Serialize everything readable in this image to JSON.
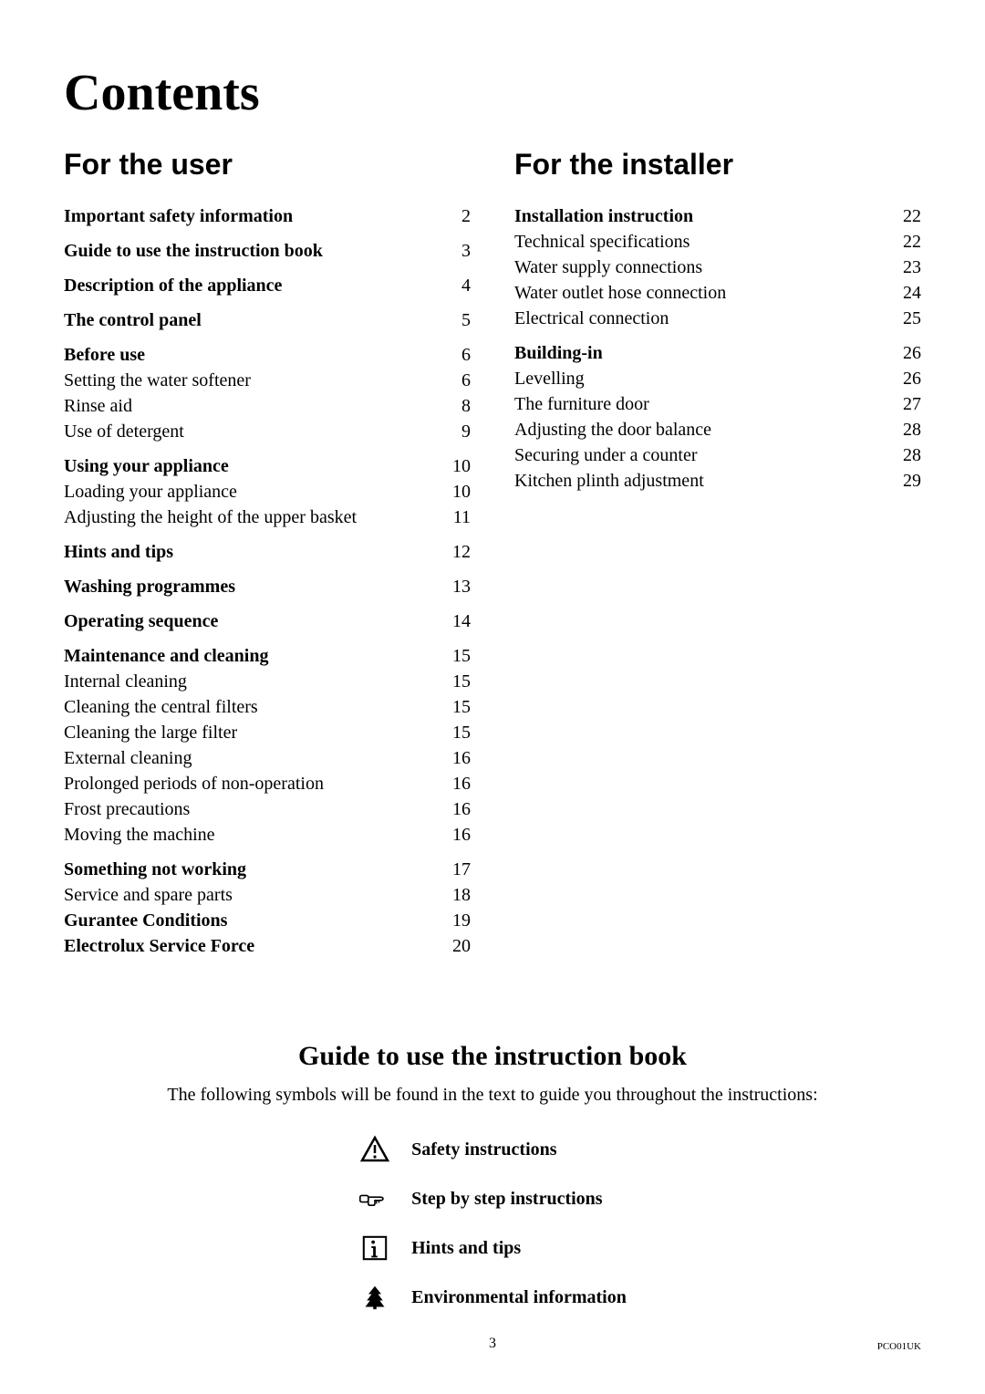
{
  "title": "Contents",
  "colors": {
    "text": "#000000",
    "background": "#ffffff"
  },
  "fonts": {
    "title_family": "Georgia",
    "heading_family": "Arial",
    "body_family": "Times New Roman",
    "title_size_pt": 42,
    "heading_size_pt": 24,
    "body_size_pt": 15
  },
  "left": {
    "heading": "For the user",
    "sections": [
      {
        "items": [
          {
            "label": "Important safety information",
            "page": "2",
            "bold": true
          }
        ]
      },
      {
        "items": [
          {
            "label": "Guide to use the instruction book",
            "page": "3",
            "bold": true
          }
        ]
      },
      {
        "items": [
          {
            "label": "Description of the appliance",
            "page": "4",
            "bold": true
          }
        ]
      },
      {
        "items": [
          {
            "label": "The control panel",
            "page": "5",
            "bold": true
          }
        ]
      },
      {
        "items": [
          {
            "label": "Before use",
            "page": "6",
            "bold": true
          },
          {
            "label": "Setting the water softener",
            "page": "6",
            "bold": false
          },
          {
            "label": "Rinse aid",
            "page": "8",
            "bold": false
          },
          {
            "label": "Use of detergent",
            "page": "9",
            "bold": false
          }
        ]
      },
      {
        "items": [
          {
            "label": "Using your appliance",
            "page": "10",
            "bold": true
          },
          {
            "label": "Loading your appliance",
            "page": "10",
            "bold": false
          },
          {
            "label": "Adjusting the height of the upper basket",
            "page": "11",
            "bold": false
          }
        ]
      },
      {
        "items": [
          {
            "label": "Hints and tips",
            "page": "12",
            "bold": true
          }
        ]
      },
      {
        "items": [
          {
            "label": "Washing programmes",
            "page": "13",
            "bold": true
          }
        ]
      },
      {
        "items": [
          {
            "label": "Operating sequence",
            "page": "14",
            "bold": true
          }
        ]
      },
      {
        "items": [
          {
            "label": "Maintenance and cleaning",
            "page": "15",
            "bold": true
          },
          {
            "label": "Internal cleaning",
            "page": "15",
            "bold": false
          },
          {
            "label": "Cleaning the central filters",
            "page": "15",
            "bold": false
          },
          {
            "label": "Cleaning the large filter",
            "page": "15",
            "bold": false
          },
          {
            "label": "External cleaning",
            "page": "16",
            "bold": false
          },
          {
            "label": "Prolonged periods of non-operation",
            "page": "16",
            "bold": false
          },
          {
            "label": "Frost precautions",
            "page": "16",
            "bold": false
          },
          {
            "label": "Moving the machine",
            "page": "16",
            "bold": false
          }
        ]
      },
      {
        "items": [
          {
            "label": "Something not working",
            "page": "17",
            "bold": true
          },
          {
            "label": "Service and spare parts",
            "page": "18",
            "bold": false
          },
          {
            "label": "Gurantee Conditions",
            "page": "19",
            "bold": true
          },
          {
            "label": "Electrolux Service Force",
            "page": "20",
            "bold": true
          }
        ]
      }
    ]
  },
  "right": {
    "heading": "For the installer",
    "sections": [
      {
        "items": [
          {
            "label": "Installation instruction",
            "page": "22",
            "bold": true
          },
          {
            "label": "Technical specifications",
            "page": "22",
            "bold": false
          },
          {
            "label": "Water supply connections",
            "page": "23",
            "bold": false
          },
          {
            "label": "Water outlet hose connection",
            "page": "24",
            "bold": false
          },
          {
            "label": "Electrical connection",
            "page": "25",
            "bold": false
          }
        ]
      },
      {
        "items": [
          {
            "label": "Building-in",
            "page": "26",
            "bold": true
          },
          {
            "label": "Levelling",
            "page": "26",
            "bold": false
          },
          {
            "label": "The furniture door",
            "page": "27",
            "bold": false
          },
          {
            "label": "Adjusting the door balance",
            "page": "28",
            "bold": false
          },
          {
            "label": "Securing under a counter",
            "page": "28",
            "bold": false
          },
          {
            "label": "Kitchen plinth adjustment",
            "page": "29",
            "bold": false
          }
        ]
      }
    ]
  },
  "guide": {
    "title": "Guide to use the instruction book",
    "intro": "The following symbols will be found in the text to guide you throughout the instructions:",
    "symbols": [
      {
        "icon": "warning",
        "label": "Safety instructions"
      },
      {
        "icon": "pointing-hand",
        "label": "Step by step instructions"
      },
      {
        "icon": "info-box",
        "label": "Hints and tips"
      },
      {
        "icon": "tree",
        "label": "Environmental information"
      }
    ]
  },
  "footer": {
    "page_number": "3",
    "doc_code": "PCO01UK"
  }
}
